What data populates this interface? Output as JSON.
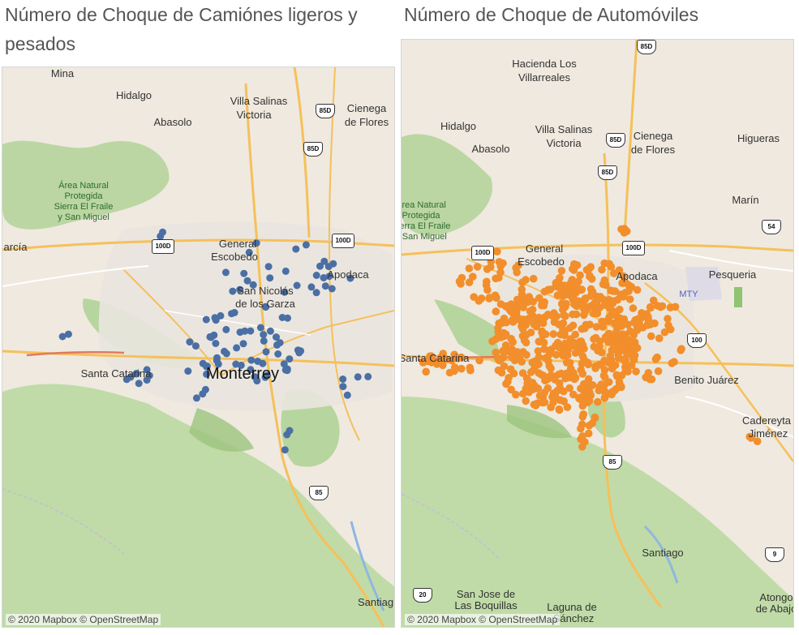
{
  "titles": {
    "left": "Número de Choque de Camiónes ligeros y pesados",
    "right": "Número de Choque de Automóviles"
  },
  "attribution": "© 2020 Mapbox © OpenStreetMap",
  "colors": {
    "trucks": "#4a6fa5",
    "cars": "#f28e2b",
    "land": "#efe9e0",
    "park": "#a9cf8d",
    "road_major": "#f6c05a",
    "road_minor": "#ffffff",
    "boundary": "#c9b8d8"
  },
  "left_map": {
    "labels": {
      "mina": "Mina",
      "hidalgo": "Hidalgo",
      "abasolo": "Abasolo",
      "villa_salinas": "Villa Salinas",
      "victoria": "Victoria",
      "cienega": "Cienega",
      "de_flores": "de Flores",
      "area1": "Área Natural",
      "area2": "Protegida",
      "area3": "Sierra El Fraile",
      "area4": "y San Miguel",
      "garcia": "arcía",
      "general": "General",
      "escobedo": "Escobedo",
      "apodaca": "Apodaca",
      "san_nicolas": "San Nicolás",
      "de_los_garza": "de los Garza",
      "santa_catarina": "Santa Catarina",
      "monterrey": "Monterrey",
      "santiago": "Santiag"
    },
    "shields": {
      "r100d": "100D",
      "r85d_a": "85D",
      "r85d_b": "85D",
      "r85": "85"
    }
  },
  "right_map": {
    "labels": {
      "hacienda": "Hacienda Los",
      "villarreales": "Villarreales",
      "hidalgo": "Hidalgo",
      "abasolo": "Abasolo",
      "villa_salinas": "Villa Salinas",
      "victoria": "Victoria",
      "cienega": "Cienega",
      "de_flores": "de Flores",
      "higueras": "Higueras",
      "marin": "Marín",
      "area1": "Área Natural",
      "area2": "Protegida",
      "area3": "Sierra El Fraile",
      "area4": "y San Miguel",
      "general": "General",
      "escobedo": "Escobedo",
      "apodaca": "Apodaca",
      "pesqueria": "Pesqueria",
      "mty": "MTY",
      "santa_catarina": "Santa Catarina",
      "benito_juarez": "Benito Juárez",
      "cadereyta": "Cadereyta",
      "jimenez": "Jiménez",
      "santiago": "Santiago",
      "san_jose": "San Jose de",
      "las_boquillas": "Las Boquillas",
      "laguna": "Laguna de",
      "sanchez": "Sánchez",
      "atongo": "Atongo",
      "de_abajo": "de Abajo"
    },
    "shields": {
      "r85d_a": "85D",
      "r85d_b": "85D",
      "r85d_c": "85D",
      "r100d_a": "100D",
      "r100d_b": "100D",
      "r100": "100",
      "r54": "54",
      "r85": "85",
      "r20": "20",
      "r9": "9"
    }
  }
}
